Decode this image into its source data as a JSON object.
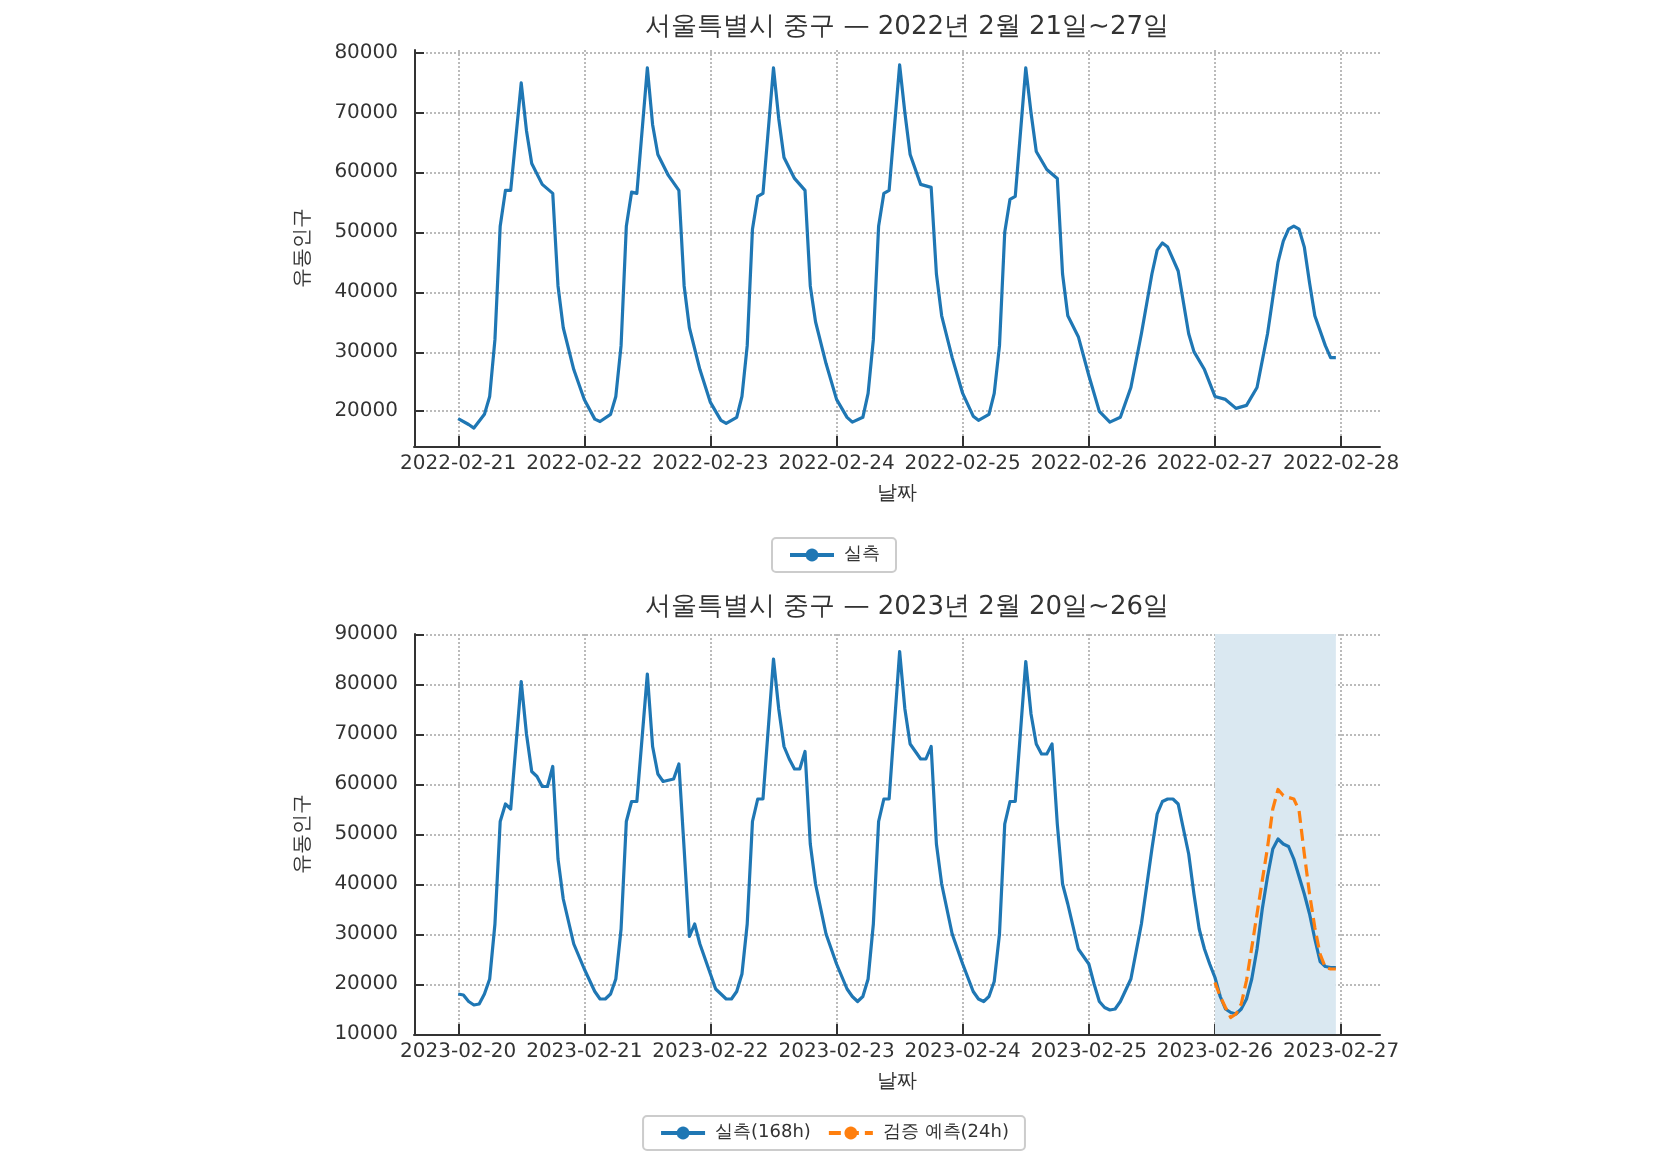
{
  "chart_data": [
    {
      "type": "line",
      "title": "서울특별시 중구 — 2022년 2월 21일~27일",
      "xlabel": "날짜",
      "ylabel": "유동인구",
      "x": [
        "2022-02-21T00:00",
        "2022-02-21T02:00",
        "2022-02-21T03:00",
        "2022-02-21T05:00",
        "2022-02-21T06:00",
        "2022-02-21T07:00",
        "2022-02-21T08:00",
        "2022-02-21T09:00",
        "2022-02-21T10:00",
        "2022-02-21T12:00",
        "2022-02-21T13:00",
        "2022-02-21T14:00",
        "2022-02-21T16:00",
        "2022-02-21T18:00",
        "2022-02-21T19:00",
        "2022-02-21T20:00",
        "2022-02-21T22:00",
        "2022-02-22T00:00",
        "2022-02-22T02:00",
        "2022-02-22T03:00",
        "2022-02-22T05:00",
        "2022-02-22T06:00",
        "2022-02-22T07:00",
        "2022-02-22T08:00",
        "2022-02-22T09:00",
        "2022-02-22T10:00",
        "2022-02-22T12:00",
        "2022-02-22T13:00",
        "2022-02-22T14:00",
        "2022-02-22T16:00",
        "2022-02-22T18:00",
        "2022-02-22T19:00",
        "2022-02-22T20:00",
        "2022-02-22T22:00",
        "2022-02-23T00:00",
        "2022-02-23T02:00",
        "2022-02-23T03:00",
        "2022-02-23T05:00",
        "2022-02-23T06:00",
        "2022-02-23T07:00",
        "2022-02-23T08:00",
        "2022-02-23T09:00",
        "2022-02-23T10:00",
        "2022-02-23T12:00",
        "2022-02-23T13:00",
        "2022-02-23T14:00",
        "2022-02-23T16:00",
        "2022-02-23T18:00",
        "2022-02-23T19:00",
        "2022-02-23T20:00",
        "2022-02-23T22:00",
        "2022-02-24T00:00",
        "2022-02-24T02:00",
        "2022-02-24T03:00",
        "2022-02-24T05:00",
        "2022-02-24T06:00",
        "2022-02-24T07:00",
        "2022-02-24T08:00",
        "2022-02-24T09:00",
        "2022-02-24T10:00",
        "2022-02-24T12:00",
        "2022-02-24T13:00",
        "2022-02-24T14:00",
        "2022-02-24T16:00",
        "2022-02-24T18:00",
        "2022-02-24T19:00",
        "2022-02-24T20:00",
        "2022-02-24T22:00",
        "2022-02-25T00:00",
        "2022-02-25T02:00",
        "2022-02-25T03:00",
        "2022-02-25T05:00",
        "2022-02-25T06:00",
        "2022-02-25T07:00",
        "2022-02-25T08:00",
        "2022-02-25T09:00",
        "2022-02-25T10:00",
        "2022-02-25T12:00",
        "2022-02-25T13:00",
        "2022-02-25T14:00",
        "2022-02-25T16:00",
        "2022-02-25T18:00",
        "2022-02-25T19:00",
        "2022-02-25T20:00",
        "2022-02-25T22:00",
        "2022-02-26T00:00",
        "2022-02-26T02:00",
        "2022-02-26T04:00",
        "2022-02-26T06:00",
        "2022-02-26T08:00",
        "2022-02-26T10:00",
        "2022-02-26T12:00",
        "2022-02-26T13:00",
        "2022-02-26T14:00",
        "2022-02-26T15:00",
        "2022-02-26T17:00",
        "2022-02-26T19:00",
        "2022-02-26T20:00",
        "2022-02-26T22:00",
        "2022-02-27T00:00",
        "2022-02-27T02:00",
        "2022-02-27T04:00",
        "2022-02-27T06:00",
        "2022-02-27T08:00",
        "2022-02-27T10:00",
        "2022-02-27T12:00",
        "2022-02-27T13:00",
        "2022-02-27T14:00",
        "2022-02-27T15:00",
        "2022-02-27T16:00",
        "2022-02-27T17:00",
        "2022-02-27T18:00",
        "2022-02-27T19:00",
        "2022-02-27T21:00",
        "2022-02-27T22:00",
        "2022-02-27T23:00"
      ],
      "series": [
        {
          "name": "실측",
          "color": "#1f77b4",
          "values": [
            18800,
            17800,
            17200,
            19500,
            22500,
            32000,
            51000,
            57000,
            57000,
            75000,
            67000,
            61500,
            58000,
            56500,
            41000,
            34000,
            27000,
            22000,
            18700,
            18300,
            19500,
            22500,
            31000,
            51000,
            56700,
            56500,
            77500,
            68000,
            63000,
            59500,
            57000,
            41000,
            34000,
            27000,
            21500,
            18500,
            18000,
            19000,
            22500,
            31000,
            50500,
            56000,
            56500,
            77500,
            69000,
            62500,
            59000,
            57000,
            41000,
            35000,
            28000,
            22000,
            19000,
            18200,
            19000,
            23000,
            32000,
            51000,
            56500,
            57000,
            78000,
            70000,
            63000,
            58000,
            57500,
            43000,
            36000,
            29000,
            23000,
            19200,
            18500,
            19500,
            23000,
            31000,
            50000,
            55500,
            56000,
            77500,
            70000,
            63500,
            60500,
            59000,
            43000,
            36000,
            32500,
            26000,
            20000,
            18200,
            19000,
            24000,
            33000,
            43000,
            47000,
            48200,
            47500,
            43500,
            33000,
            30000,
            27000,
            22500,
            22000,
            20500,
            21000,
            24000,
            33000,
            45000,
            48500,
            50500,
            51000,
            50500,
            47500,
            41500,
            36000,
            31000,
            29000,
            29000
          ]
        }
      ],
      "xlim": [
        "2022-02-20T15:36",
        "2022-02-28T07:24"
      ],
      "xticks": [
        "2022-02-21",
        "2022-02-22",
        "2022-02-23",
        "2022-02-24",
        "2022-02-25",
        "2022-02-26",
        "2022-02-27",
        "2022-02-28"
      ],
      "ylim": [
        14200,
        80500
      ],
      "yticks": [
        20000,
        30000,
        40000,
        50000,
        60000,
        70000,
        80000
      ],
      "grid": true,
      "legend": "bottom"
    },
    {
      "type": "line",
      "title": "서울특별시 중구 — 2023년 2월 20일~26일",
      "xlabel": "날짜",
      "ylabel": "유동인구",
      "series": [
        {
          "name": "실측(168h)",
          "color": "#1f77b4",
          "x": [
            "2023-02-20T00:00",
            "2023-02-20T01:00",
            "2023-02-20T02:00",
            "2023-02-20T03:00",
            "2023-02-20T04:00",
            "2023-02-20T05:00",
            "2023-02-20T06:00",
            "2023-02-20T07:00",
            "2023-02-20T08:00",
            "2023-02-20T09:00",
            "2023-02-20T10:00",
            "2023-02-20T12:00",
            "2023-02-20T13:00",
            "2023-02-20T14:00",
            "2023-02-20T15:00",
            "2023-02-20T16:00",
            "2023-02-20T17:00",
            "2023-02-20T18:00",
            "2023-02-20T19:00",
            "2023-02-20T20:00",
            "2023-02-20T22:00",
            "2023-02-21T00:00",
            "2023-02-21T02:00",
            "2023-02-21T03:00",
            "2023-02-21T04:00",
            "2023-02-21T05:00",
            "2023-02-21T06:00",
            "2023-02-21T07:00",
            "2023-02-21T08:00",
            "2023-02-21T09:00",
            "2023-02-21T10:00",
            "2023-02-21T12:00",
            "2023-02-21T13:00",
            "2023-02-21T14:00",
            "2023-02-21T15:00",
            "2023-02-21T17:00",
            "2023-02-21T18:00",
            "2023-02-21T19:00",
            "2023-02-21T20:00",
            "2023-02-21T21:00",
            "2023-02-21T22:00",
            "2023-02-22T00:00",
            "2023-02-22T01:00",
            "2023-02-22T02:00",
            "2023-02-22T03:00",
            "2023-02-22T04:00",
            "2023-02-22T05:00",
            "2023-02-22T06:00",
            "2023-02-22T07:00",
            "2023-02-22T08:00",
            "2023-02-22T09:00",
            "2023-02-22T10:00",
            "2023-02-22T12:00",
            "2023-02-22T13:00",
            "2023-02-22T14:00",
            "2023-02-22T15:00",
            "2023-02-22T16:00",
            "2023-02-22T17:00",
            "2023-02-22T18:00",
            "2023-02-22T19:00",
            "2023-02-22T20:00",
            "2023-02-22T22:00",
            "2023-02-23T00:00",
            "2023-02-23T02:00",
            "2023-02-23T03:00",
            "2023-02-23T04:00",
            "2023-02-23T05:00",
            "2023-02-23T06:00",
            "2023-02-23T07:00",
            "2023-02-23T08:00",
            "2023-02-23T09:00",
            "2023-02-23T10:00",
            "2023-02-23T12:00",
            "2023-02-23T13:00",
            "2023-02-23T14:00",
            "2023-02-23T15:00",
            "2023-02-23T16:00",
            "2023-02-23T17:00",
            "2023-02-23T18:00",
            "2023-02-23T19:00",
            "2023-02-23T20:00",
            "2023-02-23T22:00",
            "2023-02-24T00:00",
            "2023-02-24T02:00",
            "2023-02-24T03:00",
            "2023-02-24T04:00",
            "2023-02-24T05:00",
            "2023-02-24T06:00",
            "2023-02-24T07:00",
            "2023-02-24T08:00",
            "2023-02-24T09:00",
            "2023-02-24T10:00",
            "2023-02-24T12:00",
            "2023-02-24T13:00",
            "2023-02-24T14:00",
            "2023-02-24T15:00",
            "2023-02-24T16:00",
            "2023-02-24T17:00",
            "2023-02-24T18:00",
            "2023-02-24T19:00",
            "2023-02-24T20:00",
            "2023-02-24T22:00",
            "2023-02-25T00:00",
            "2023-02-25T01:00",
            "2023-02-25T02:00",
            "2023-02-25T03:00",
            "2023-02-25T04:00",
            "2023-02-25T05:00",
            "2023-02-25T06:00",
            "2023-02-25T08:00",
            "2023-02-25T10:00",
            "2023-02-25T12:00",
            "2023-02-25T13:00",
            "2023-02-25T14:00",
            "2023-02-25T15:00",
            "2023-02-25T16:00",
            "2023-02-25T17:00",
            "2023-02-25T18:00",
            "2023-02-25T19:00",
            "2023-02-25T20:00",
            "2023-02-25T21:00",
            "2023-02-25T22:00",
            "2023-02-25T23:00",
            "2023-02-26T00:00",
            "2023-02-26T01:00",
            "2023-02-26T02:00",
            "2023-02-26T03:00",
            "2023-02-26T04:00",
            "2023-02-26T05:00",
            "2023-02-26T06:00",
            "2023-02-26T07:00",
            "2023-02-26T08:00",
            "2023-02-26T09:00",
            "2023-02-26T10:00",
            "2023-02-26T11:00",
            "2023-02-26T12:00",
            "2023-02-26T13:00",
            "2023-02-26T14:00",
            "2023-02-26T15:00",
            "2023-02-26T16:00",
            "2023-02-26T17:00",
            "2023-02-26T18:00",
            "2023-02-26T19:00",
            "2023-02-26T20:00",
            "2023-02-26T21:00",
            "2023-02-26T22:00",
            "2023-02-26T23:00"
          ],
          "values": [
            18000,
            17800,
            16500,
            15800,
            16000,
            18000,
            21000,
            32000,
            52500,
            56000,
            55000,
            80500,
            70000,
            62500,
            61500,
            59500,
            59500,
            63500,
            45000,
            37000,
            28000,
            23000,
            18500,
            17000,
            17000,
            18000,
            21000,
            31000,
            52500,
            56500,
            56500,
            82000,
            67500,
            62000,
            60500,
            61000,
            64000,
            47000,
            29500,
            32000,
            28000,
            22000,
            19000,
            18000,
            17000,
            17000,
            18500,
            22000,
            32000,
            52500,
            57000,
            57000,
            85000,
            75000,
            67500,
            65000,
            63000,
            63000,
            66500,
            48000,
            40000,
            30000,
            24000,
            19000,
            17500,
            16500,
            17500,
            21000,
            32000,
            52500,
            57000,
            57000,
            86500,
            75000,
            68000,
            66500,
            65000,
            65000,
            67500,
            48000,
            40000,
            30000,
            24000,
            18500,
            17000,
            16500,
            17500,
            20500,
            30000,
            52000,
            56500,
            56500,
            84500,
            74000,
            68000,
            66000,
            66000,
            68000,
            52000,
            40000,
            36000,
            27000,
            24000,
            20000,
            16500,
            15300,
            14800,
            15000,
            16500,
            21000,
            32000,
            47000,
            54000,
            56500,
            57000,
            57000,
            56000,
            51000,
            46000,
            38000,
            31000,
            27000,
            24000,
            21300,
            17500,
            15000,
            14300,
            14000,
            15000,
            17000,
            21000,
            27000,
            35000,
            41500,
            47000,
            49000,
            48000,
            47500,
            45000,
            41500,
            38000,
            34000,
            29000,
            24500,
            23500,
            23300,
            23300
          ]
        },
        {
          "name": "검증 예측(24h)",
          "color": "#ff7f0e",
          "line_style": "dashed",
          "x": [
            "2023-02-26T00:00",
            "2023-02-26T01:00",
            "2023-02-26T02:00",
            "2023-02-26T03:00",
            "2023-02-26T04:00",
            "2023-02-26T05:00",
            "2023-02-26T06:00",
            "2023-02-26T07:00",
            "2023-02-26T08:00",
            "2023-02-26T09:00",
            "2023-02-26T10:00",
            "2023-02-26T11:00",
            "2023-02-26T12:00",
            "2023-02-26T13:00",
            "2023-02-26T14:00",
            "2023-02-26T15:00",
            "2023-02-26T16:00",
            "2023-02-26T17:00",
            "2023-02-26T18:00",
            "2023-02-26T19:00",
            "2023-02-26T20:00",
            "2023-02-26T21:00",
            "2023-02-26T22:00",
            "2023-02-26T23:00"
          ],
          "values": [
            20300,
            17500,
            15300,
            13300,
            14000,
            16000,
            20700,
            27300,
            34000,
            40700,
            47300,
            55000,
            58900,
            57700,
            57300,
            57000,
            54700,
            46000,
            38000,
            31300,
            26000,
            23300,
            23000,
            23000
          ]
        }
      ],
      "bands": [
        {
          "axis": "x",
          "from": "2023-02-26T00:00",
          "to": "2023-02-26T23:00",
          "color": "#dae8f1"
        }
      ],
      "xlim": [
        "2023-02-19T15:36",
        "2023-02-27T07:24"
      ],
      "xticks": [
        "2023-02-20",
        "2023-02-21",
        "2023-02-22",
        "2023-02-23",
        "2023-02-24",
        "2023-02-25",
        "2023-02-26",
        "2023-02-27"
      ],
      "ylim": [
        10000,
        90000
      ],
      "yticks": [
        10000,
        20000,
        30000,
        40000,
        50000,
        60000,
        70000,
        80000,
        90000
      ],
      "grid": true,
      "legend": "bottom"
    }
  ]
}
